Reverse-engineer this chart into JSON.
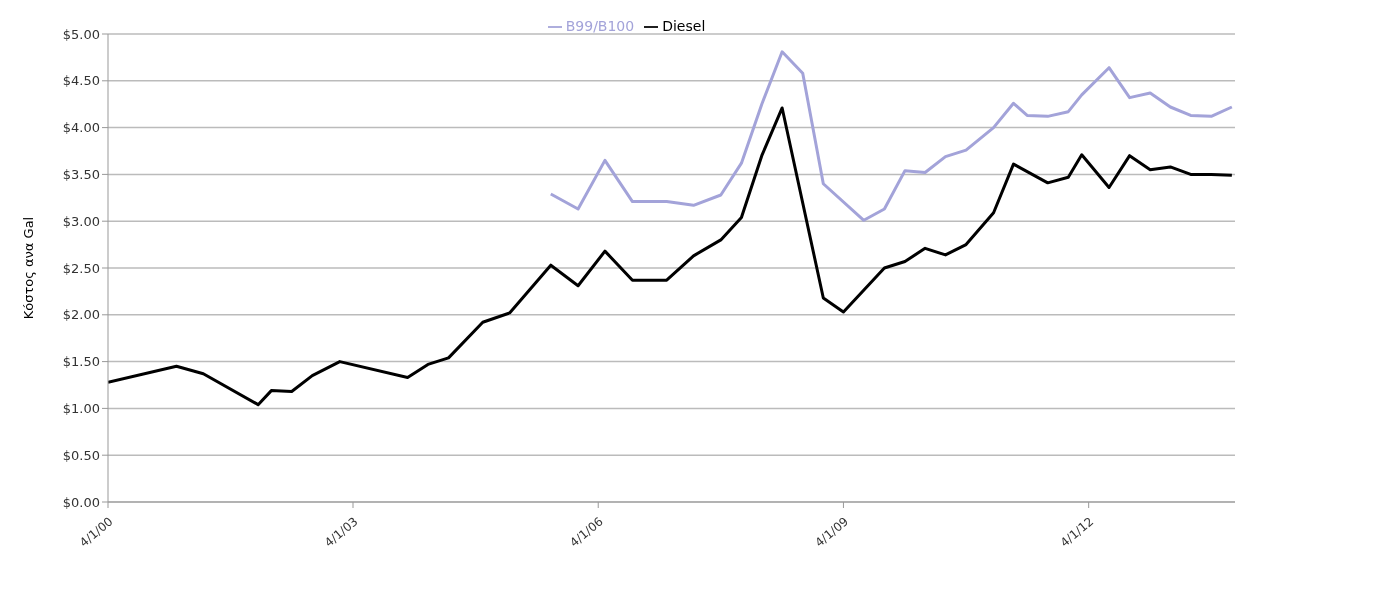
{
  "chart_data": {
    "type": "line",
    "ylabel": "Κόστος ανα Gal",
    "xlim": [
      "2000-04-01",
      "2014-01-15"
    ],
    "xticks": [
      {
        "value": "2000-04-01",
        "label": "4/1/00"
      },
      {
        "value": "2003-04-01",
        "label": "4/1/03"
      },
      {
        "value": "2006-04-01",
        "label": "4/1/06"
      },
      {
        "value": "2009-04-01",
        "label": "4/1/09"
      },
      {
        "value": "2012-04-01",
        "label": "4/1/12"
      }
    ],
    "ylim": [
      0,
      5
    ],
    "yticks": [
      {
        "value": 0,
        "label": "$0.00"
      },
      {
        "value": 0.5,
        "label": "$0.50"
      },
      {
        "value": 1,
        "label": "$1.00"
      },
      {
        "value": 1.5,
        "label": "$1.50"
      },
      {
        "value": 2,
        "label": "$2.00"
      },
      {
        "value": 2.5,
        "label": "$2.50"
      },
      {
        "value": 3,
        "label": "$3.00"
      },
      {
        "value": 3.5,
        "label": "$3.50"
      },
      {
        "value": 4,
        "label": "$4.00"
      },
      {
        "value": 4.5,
        "label": "$4.50"
      },
      {
        "value": 5,
        "label": "$5.00"
      }
    ],
    "grid": "y",
    "legend": "top",
    "marker": "none",
    "line_style": "solid",
    "series": [
      {
        "name": "B99/B100",
        "color": "#a3a3d9",
        "x": [
          "2005-09",
          "2006-01",
          "2006-05",
          "2006-09",
          "2007-02",
          "2007-06",
          "2007-10",
          "2008-01",
          "2008-04",
          "2008-07",
          "2008-10",
          "2009-01",
          "2009-07",
          "2009-10",
          "2010-01",
          "2010-04",
          "2010-07",
          "2010-10",
          "2011-02",
          "2011-05",
          "2011-07",
          "2011-10",
          "2012-01",
          "2012-03",
          "2012-07",
          "2012-10",
          "2013-01",
          "2013-04",
          "2013-07",
          "2013-10",
          "2014-01"
        ],
        "values": [
          3.29,
          3.13,
          3.65,
          3.21,
          3.21,
          3.17,
          3.28,
          3.62,
          4.25,
          4.81,
          4.58,
          3.4,
          3.01,
          3.13,
          3.54,
          3.52,
          3.69,
          3.76,
          4.0,
          4.26,
          4.13,
          4.12,
          4.17,
          4.35,
          4.64,
          4.32,
          4.37,
          4.22,
          4.13,
          4.12,
          4.22
        ]
      },
      {
        "name": "Diesel",
        "color": "#000000",
        "x": [
          "2000-04",
          "2001-02",
          "2001-06",
          "2002-02",
          "2002-04",
          "2002-07",
          "2002-10",
          "2003-02",
          "2003-12",
          "2004-03",
          "2004-06",
          "2004-11",
          "2005-03",
          "2005-09",
          "2006-01",
          "2006-05",
          "2006-09",
          "2007-02",
          "2007-06",
          "2007-10",
          "2008-01",
          "2008-04",
          "2008-07",
          "2009-01",
          "2009-04",
          "2009-10",
          "2010-01",
          "2010-04",
          "2010-07",
          "2010-10",
          "2011-02",
          "2011-05",
          "2011-10",
          "2012-01",
          "2012-03",
          "2012-07",
          "2012-10",
          "2013-01",
          "2013-04",
          "2013-07",
          "2013-10",
          "2014-01"
        ],
        "values": [
          1.28,
          1.45,
          1.37,
          1.04,
          1.19,
          1.18,
          1.35,
          1.5,
          1.33,
          1.47,
          1.54,
          1.92,
          2.02,
          2.53,
          2.31,
          2.68,
          2.37,
          2.37,
          2.63,
          2.8,
          3.04,
          3.7,
          4.21,
          2.18,
          2.03,
          2.5,
          2.57,
          2.71,
          2.64,
          2.75,
          3.09,
          3.61,
          3.41,
          3.47,
          3.71,
          3.36,
          3.7,
          3.55,
          3.58,
          3.5,
          3.5,
          3.49
        ]
      }
    ]
  }
}
